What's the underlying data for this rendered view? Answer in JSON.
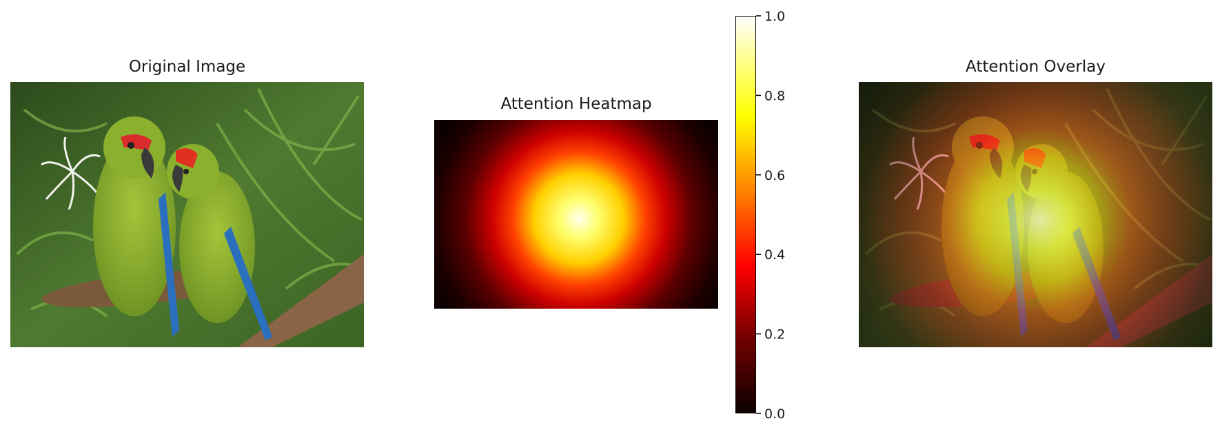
{
  "panels": {
    "original": {
      "title": "Original Image"
    },
    "heatmap": {
      "title": "Attention Heatmap"
    },
    "overlay": {
      "title": "Attention Overlay"
    }
  },
  "chart_data": {
    "type": "heatmap",
    "title": "Attention Heatmap",
    "colormap": "hot",
    "peak": {
      "x_frac": 0.51,
      "y_frac": 0.52,
      "value": 1.0
    },
    "edge_value": 0.0,
    "colorbar": {
      "min": 0.0,
      "max": 1.0,
      "ticks": [
        0.0,
        0.2,
        0.4,
        0.6,
        0.8,
        1.0
      ],
      "tick_labels": [
        "0.0",
        "0.2",
        "0.4",
        "0.6",
        "0.8",
        "1.0"
      ]
    },
    "grid": false,
    "axes_visible": false
  }
}
